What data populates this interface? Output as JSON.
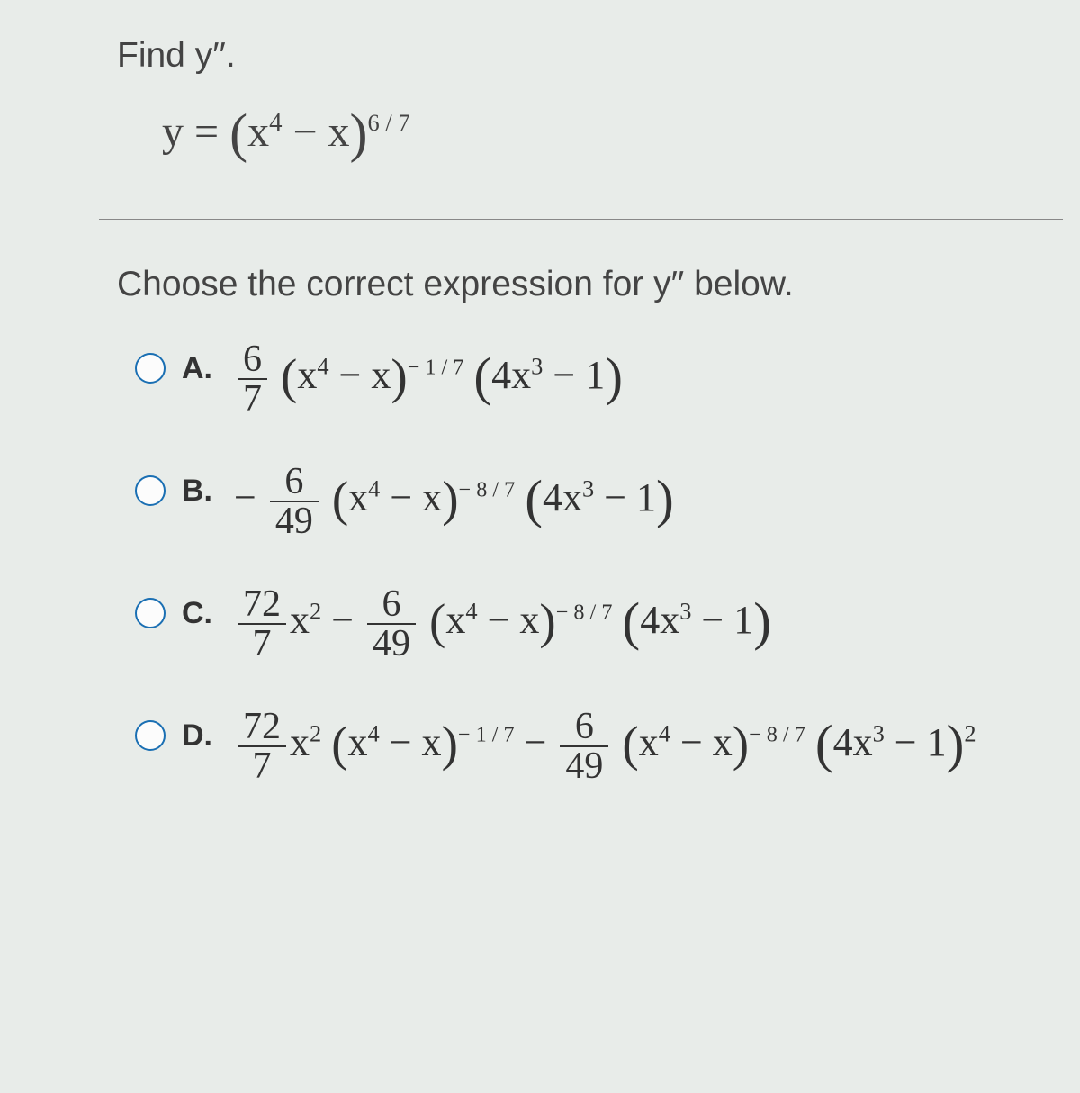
{
  "question": {
    "find_text": "Find y′′.",
    "equation_lhs": "y =",
    "equation_base_a": "x",
    "equation_base_a_exp": "4",
    "equation_base_b": "− x",
    "equation_outer_exp": "6 / 7"
  },
  "prompt": "Choose the correct expression for y′′ below.",
  "choices": [
    {
      "letter": "A.",
      "frac_num": "6",
      "frac_den": "7",
      "outer_exp": "− 1 / 7",
      "poly_coeff": "4x",
      "poly_exp": "3",
      "poly_tail": "− 1",
      "tail_exp": ""
    },
    {
      "letter": "B.",
      "leading_minus": "−",
      "frac_num": "6",
      "frac_den": "49",
      "outer_exp": "− 8 / 7",
      "poly_coeff": "4x",
      "poly_exp": "3",
      "poly_tail": "− 1",
      "tail_exp": ""
    },
    {
      "letter": "C.",
      "frac1_num": "72",
      "frac1_den": "7",
      "mid": "x",
      "mid_exp": "2",
      "op": "−",
      "frac2_num": "6",
      "frac2_den": "49",
      "outer_exp": "− 8 / 7",
      "poly_coeff": "4x",
      "poly_exp": "3",
      "poly_tail": "− 1",
      "tail_exp": ""
    },
    {
      "letter": "D.",
      "frac1_num": "72",
      "frac1_den": "7",
      "mid": "x",
      "mid_exp": "2",
      "outer_exp1": "− 1 / 7",
      "op": "−",
      "frac2_num": "6",
      "frac2_den": "49",
      "outer_exp2": "− 8 / 7",
      "poly_coeff": "4x",
      "poly_exp": "3",
      "poly_tail": "− 1",
      "tail_exp": "2"
    }
  ],
  "base_inner_a": "x",
  "base_inner_a_exp": "4",
  "base_inner_b": "− x",
  "colors": {
    "background": "#e8ece9",
    "text": "#3a3a3a",
    "radio_border": "#1a6fb3",
    "divider": "#888888"
  },
  "fonts": {
    "body_family": "Arial",
    "math_family": "Times New Roman",
    "question_size_pt": 29,
    "math_size_pt": 33
  }
}
